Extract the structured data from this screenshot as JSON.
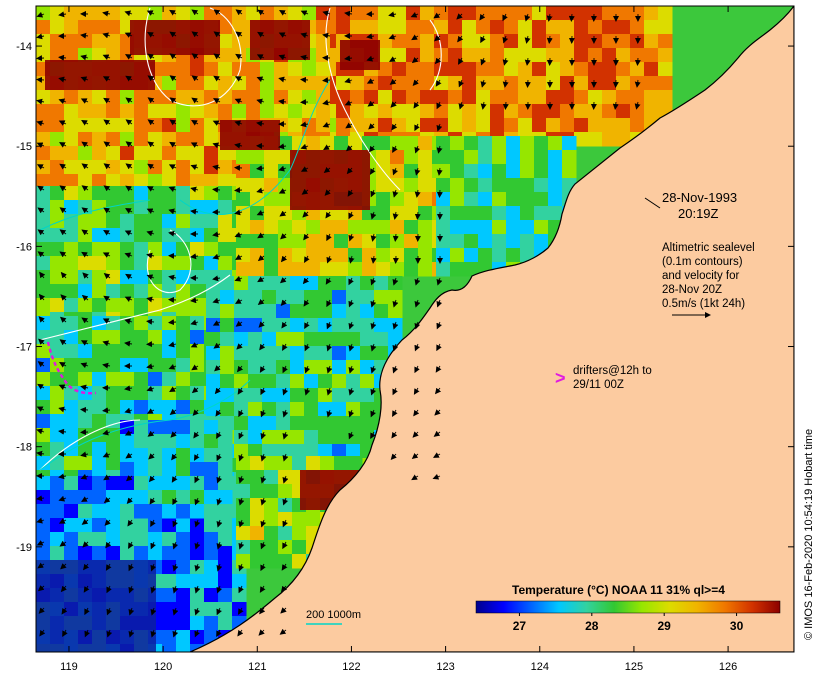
{
  "map": {
    "lon_ticks": [
      "119",
      "120",
      "121",
      "122",
      "123",
      "124",
      "125",
      "126"
    ],
    "lon_values": [
      119,
      120,
      121,
      122,
      123,
      124,
      125,
      126
    ],
    "lat_ticks": [
      "-14",
      "-15",
      "-16",
      "-17",
      "-18",
      "-19"
    ],
    "lat_values": [
      -14,
      -15,
      -16,
      -17,
      -18,
      -19
    ],
    "lon_range": [
      118.65,
      126.7
    ],
    "lat_range": [
      -13.6,
      -20.05
    ],
    "land_color": "#fccba0",
    "coast_color": "#000000",
    "contour_color": "#ffffff",
    "isobath_color": "#00d6c8",
    "drifter_color": "#e01ae0"
  },
  "annotations": {
    "date_line1": "28-Nov-1993",
    "date_line2": "20:19Z",
    "legend_lines": [
      "Altimetric sealevel",
      "(0.1m contours)",
      "and velocity for",
      "28-Nov 20Z",
      "0.5m/s (1kt 24h)"
    ],
    "drifter_marker": ">",
    "drifter_lines": [
      "drifters@12h to",
      "29/11 00Z"
    ],
    "isobath_label": "200  1000m"
  },
  "colorbar": {
    "title": "Temperature (°C) NOAA 11 31% ql>=4",
    "ticks": [
      "27",
      "28",
      "29",
      "30"
    ],
    "tick_values": [
      27,
      28,
      29,
      30
    ],
    "range": [
      26.4,
      30.6
    ],
    "colors": [
      "#00008c",
      "#0000ff",
      "#0064ff",
      "#00c8ff",
      "#32d2a0",
      "#32c832",
      "#96e600",
      "#dcdc00",
      "#f0b400",
      "#f07800",
      "#d23200",
      "#8c0000"
    ]
  },
  "credit": "© IMOS 16-Feb-2020 10:54:19 Hobart time"
}
